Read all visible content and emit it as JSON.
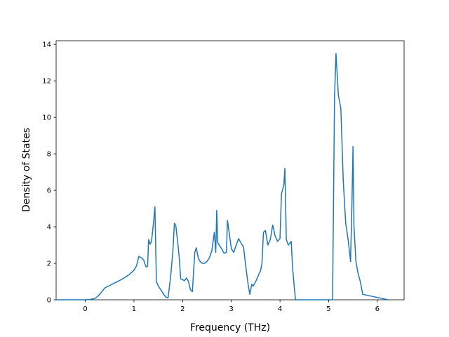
{
  "chart_data": {
    "type": "line",
    "title": "",
    "xlabel": "Frequency (THz)",
    "ylabel": "Density of States",
    "xlim": [
      -0.6,
      6.55
    ],
    "ylim": [
      0,
      14.2
    ],
    "xticks": [
      0,
      1,
      2,
      3,
      4,
      5,
      6
    ],
    "yticks": [
      0,
      2,
      4,
      6,
      8,
      10,
      12,
      14
    ],
    "grid": false,
    "legend": "none",
    "series": [
      {
        "color": "#1f77b4",
        "x": [
          -0.6,
          0.0,
          0.1,
          0.2,
          0.25,
          0.3,
          0.35,
          0.4,
          0.45,
          0.5,
          0.6,
          0.7,
          0.8,
          0.9,
          0.95,
          1.0,
          1.05,
          1.1,
          1.15,
          1.2,
          1.22,
          1.25,
          1.28,
          1.3,
          1.33,
          1.36,
          1.4,
          1.43,
          1.46,
          1.5,
          1.55,
          1.6,
          1.65,
          1.7,
          1.75,
          1.8,
          1.83,
          1.86,
          1.9,
          1.93,
          1.96,
          2.0,
          2.04,
          2.08,
          2.12,
          2.16,
          2.2,
          2.23,
          2.25,
          2.28,
          2.32,
          2.36,
          2.4,
          2.45,
          2.5,
          2.55,
          2.6,
          2.65,
          2.68,
          2.7,
          2.72,
          2.75,
          2.8,
          2.85,
          2.9,
          2.92,
          2.95,
          3.0,
          3.05,
          3.1,
          3.15,
          3.2,
          3.25,
          3.3,
          3.35,
          3.38,
          3.42,
          3.45,
          3.5,
          3.55,
          3.6,
          3.63,
          3.66,
          3.68,
          3.7,
          3.75,
          3.8,
          3.85,
          3.9,
          3.95,
          3.98,
          4.0,
          4.03,
          4.06,
          4.08,
          4.1,
          4.13,
          4.17,
          4.2,
          4.23,
          4.26,
          4.3,
          4.32,
          5.0,
          5.05,
          5.08,
          5.12,
          5.15,
          5.2,
          5.25,
          5.3,
          5.35,
          5.4,
          5.45,
          5.48,
          5.5,
          5.52,
          5.56,
          5.6,
          5.65,
          5.7,
          6.22
        ],
        "y": [
          0.0,
          0.0,
          0.02,
          0.08,
          0.18,
          0.32,
          0.48,
          0.65,
          0.72,
          0.78,
          0.92,
          1.05,
          1.2,
          1.38,
          1.5,
          1.62,
          1.85,
          2.38,
          2.3,
          2.18,
          2.0,
          1.8,
          1.85,
          3.3,
          3.05,
          3.2,
          4.2,
          5.1,
          1.0,
          0.75,
          0.55,
          0.35,
          0.15,
          0.1,
          1.2,
          2.7,
          4.2,
          4.05,
          3.1,
          2.3,
          1.15,
          1.1,
          1.05,
          1.2,
          1.0,
          0.55,
          0.45,
          1.8,
          2.6,
          2.85,
          2.3,
          2.1,
          2.0,
          2.0,
          2.1,
          2.3,
          2.7,
          3.7,
          2.6,
          4.9,
          3.15,
          3.0,
          2.8,
          2.55,
          2.6,
          4.35,
          3.8,
          2.8,
          2.6,
          3.0,
          3.35,
          3.1,
          2.9,
          1.75,
          0.75,
          0.3,
          0.85,
          0.75,
          1.0,
          1.3,
          1.6,
          2.0,
          3.7,
          3.75,
          3.8,
          3.0,
          3.3,
          4.1,
          3.5,
          3.2,
          3.3,
          3.35,
          5.8,
          6.1,
          6.3,
          7.2,
          3.3,
          3.0,
          3.1,
          3.2,
          1.7,
          0.5,
          0.0,
          0.0,
          0.0,
          0.0,
          11.0,
          13.5,
          11.2,
          10.5,
          6.5,
          4.2,
          3.3,
          2.1,
          5.5,
          8.4,
          4.0,
          2.1,
          1.5,
          1.0,
          0.3,
          0.0
        ]
      }
    ]
  }
}
